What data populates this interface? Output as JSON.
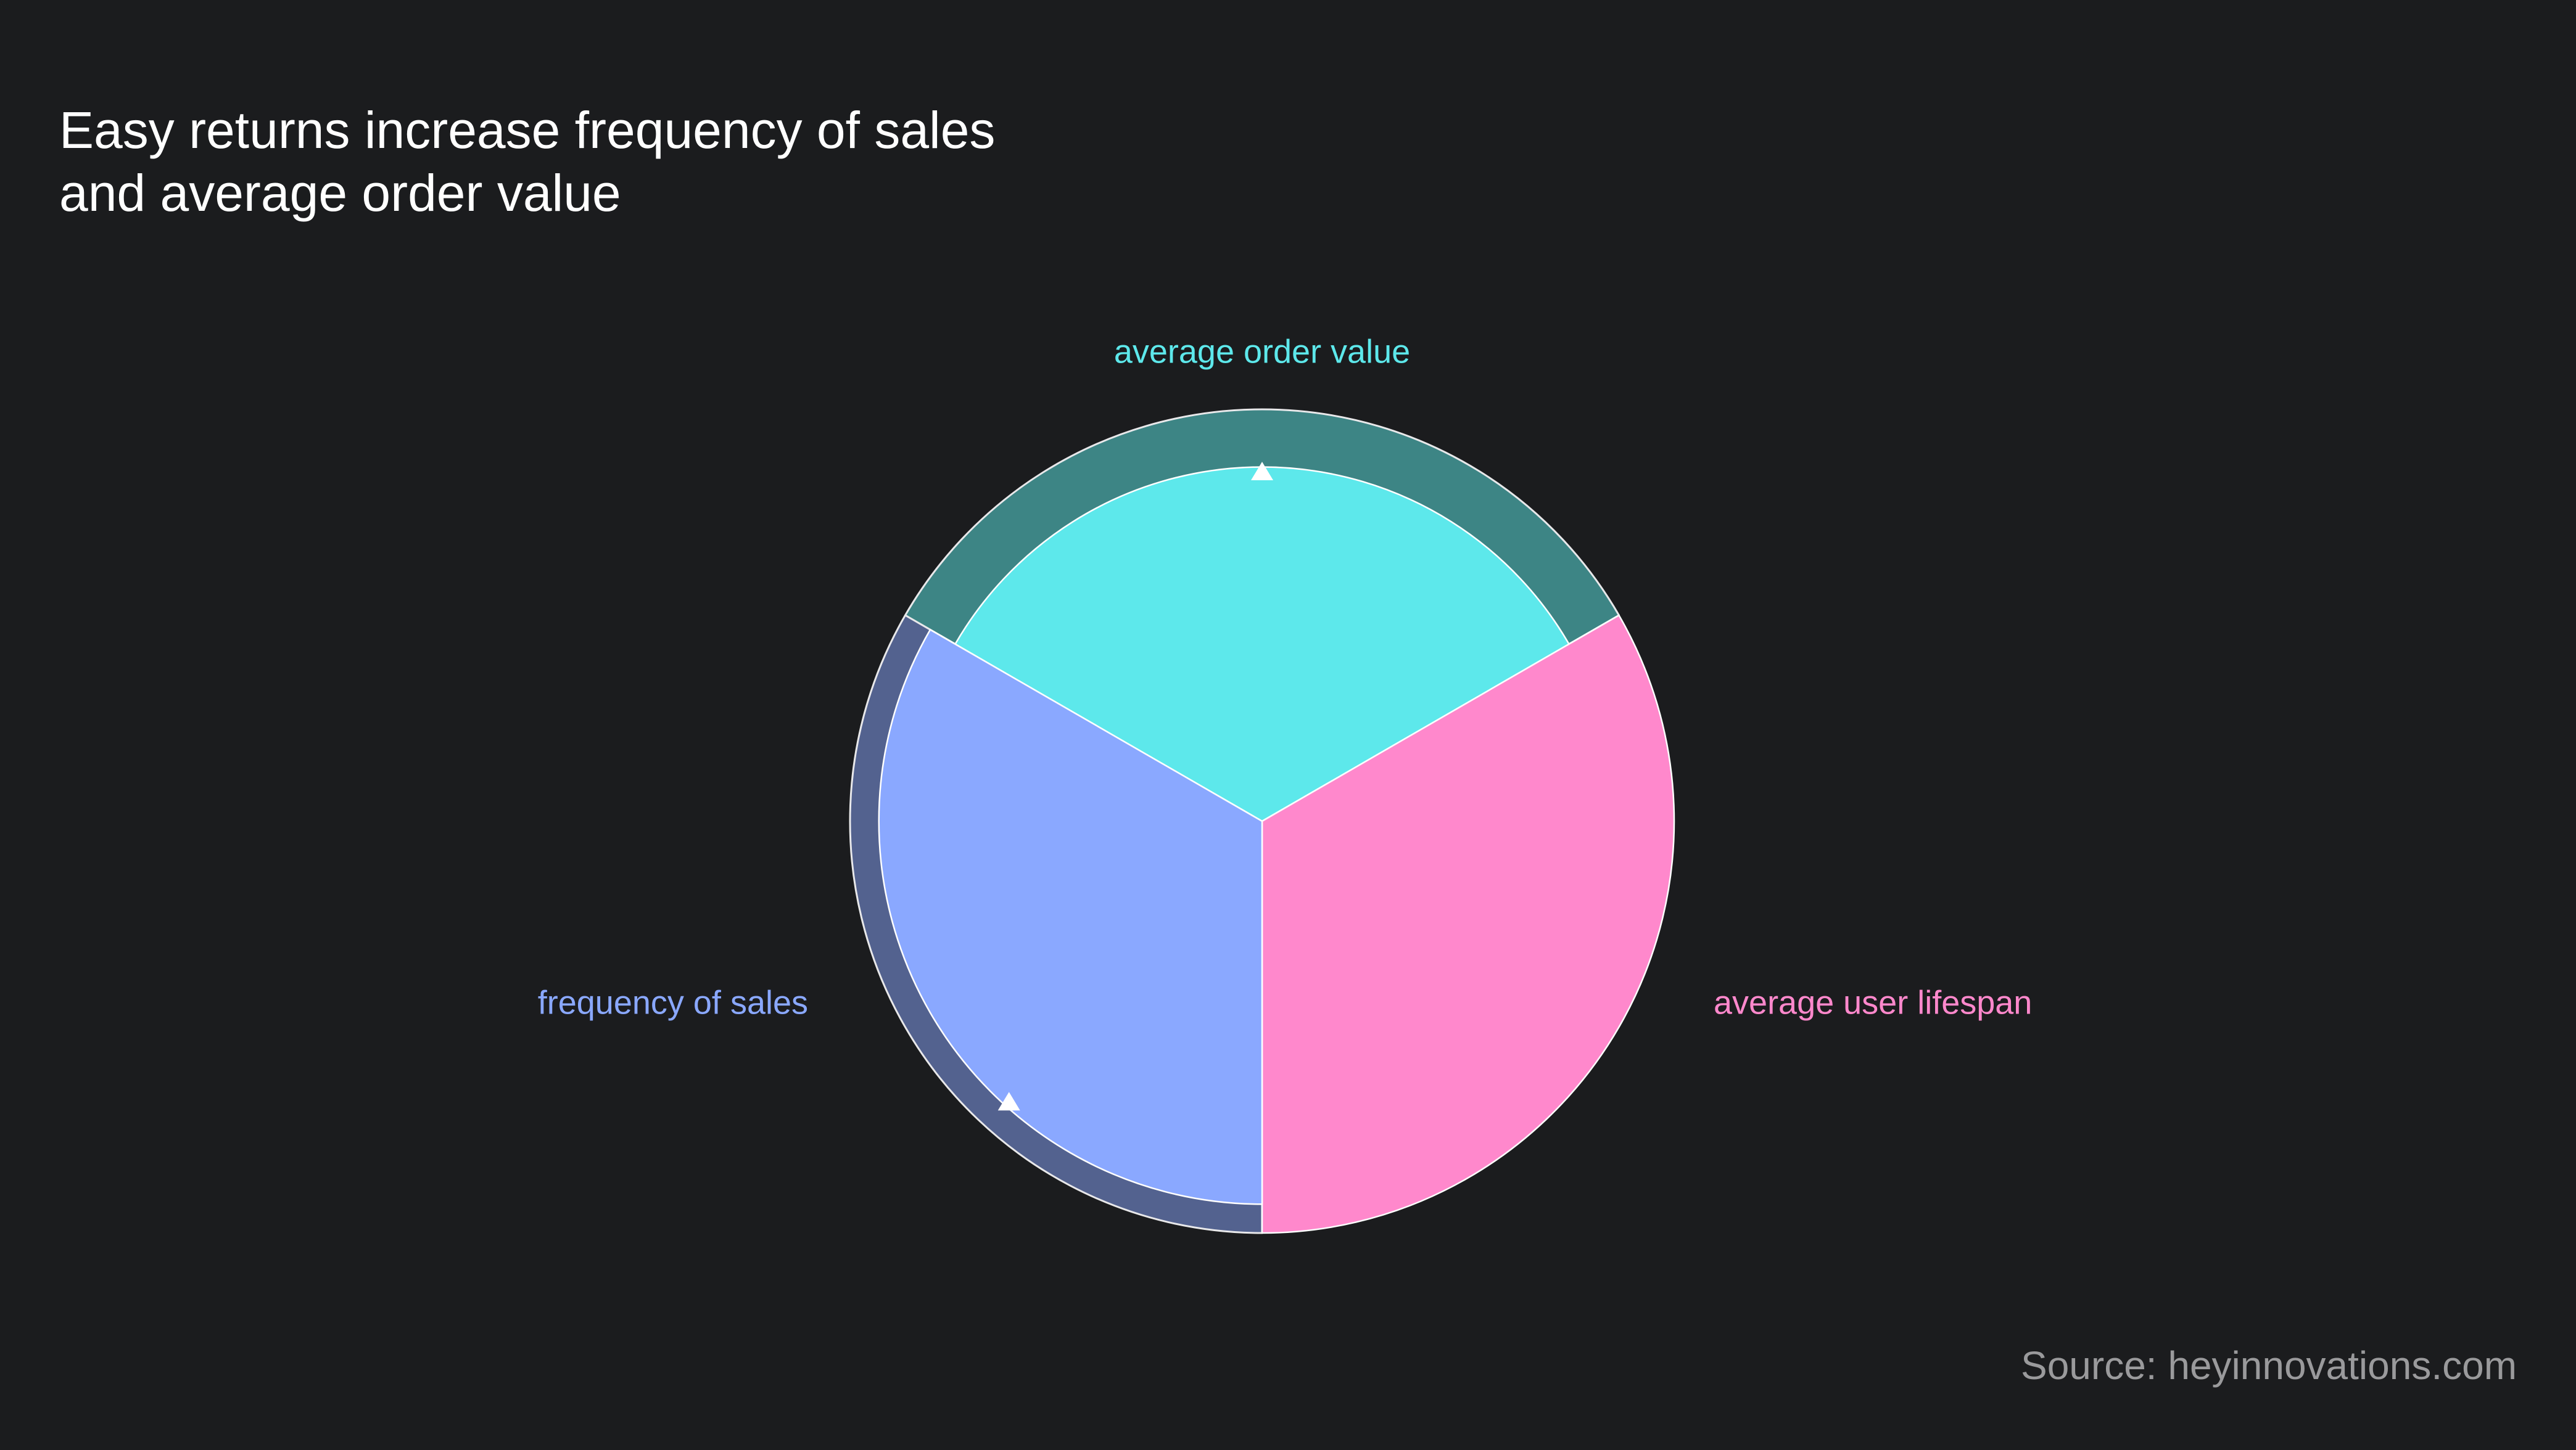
{
  "title_lines": [
    "Easy returns increase frequency of sales",
    "and average order value"
  ],
  "source": "Source: heyinnovations.com",
  "chart_data": {
    "type": "pie",
    "title": "Easy returns increase frequency of sales and average order value",
    "slices": [
      {
        "label": "average order value",
        "value": 1,
        "color": "#5de8eb",
        "band_color": "#3d8585",
        "raised": true,
        "base_fraction": 0.86
      },
      {
        "label": "average user lifespan",
        "value": 1,
        "color": "#ff88cc",
        "band_color": null,
        "raised": false,
        "base_fraction": 1.0
      },
      {
        "label": "frequency of sales",
        "value": 1,
        "color": "#8aa8ff",
        "band_color": "#53628f",
        "raised": true,
        "base_fraction": 0.93
      }
    ],
    "start_angle_deg": -60,
    "legend": "none",
    "source": "Source: heyinnovations.com"
  }
}
